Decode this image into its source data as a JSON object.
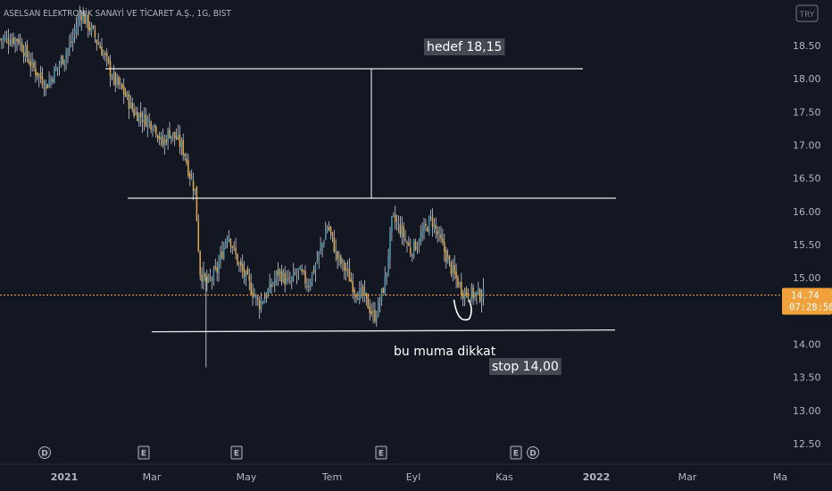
{
  "header": {
    "symbol_title": "ASELSAN ELEKTRONİK SANAYİ VE TİCARET A.Ş., 1G, BIST",
    "currency_badge": "TRY"
  },
  "price_tag": {
    "price": "14.74",
    "countdown": "07:28:50"
  },
  "colors": {
    "background": "#131722",
    "up": "#4f8fa9",
    "down": "#d8a34a",
    "wick": "#c8cbd2",
    "drawing": "#ffffff",
    "price_line": "#f0a13c",
    "axis_text": "#b2b5be",
    "label_bg": "#4a4e58"
  },
  "annotations": {
    "target": "hedef 18,15",
    "watch": "bu muma dikkat",
    "stop": "stop 14,00"
  },
  "event_markers": [
    "D",
    "E",
    "E",
    "E",
    "E",
    "D"
  ],
  "chart_data": {
    "type": "candlestick",
    "title": "ASELSAN ELEKTRONİK SANAYİ VE TİCARET A.Ş., 1G, BIST",
    "x_ticks": [
      "2021",
      "Mar",
      "May",
      "Tem",
      "Eyl",
      "Kas",
      "2022",
      "Mar",
      "Ma"
    ],
    "y_ticks": [
      "18.50",
      "18.00",
      "17.50",
      "17.00",
      "16.50",
      "16.00",
      "15.50",
      "15.00",
      "14.50",
      "14.00",
      "13.50",
      "13.00",
      "12.50"
    ],
    "ylim": [
      12.2,
      19.3
    ],
    "last_price": 14.74,
    "levels": {
      "target": 18.15,
      "resistance": 16.2,
      "support": 14.2
    },
    "close_path": [
      [
        "2020-12-01",
        18.6
      ],
      [
        "2020-12-10",
        18.2
      ],
      [
        "2020-12-20",
        17.9
      ],
      [
        "2020-12-28",
        18.2
      ],
      [
        "2021-01-05",
        18.5
      ],
      [
        "2021-01-12",
        19.0
      ],
      [
        "2021-01-20",
        18.7
      ],
      [
        "2021-01-27",
        18.4
      ],
      [
        "2021-02-03",
        18.0
      ],
      [
        "2021-02-10",
        17.8
      ],
      [
        "2021-02-17",
        17.5
      ],
      [
        "2021-02-24",
        17.4
      ],
      [
        "2021-03-03",
        17.3
      ],
      [
        "2021-03-08",
        17.0
      ],
      [
        "2021-03-12",
        17.2
      ],
      [
        "2021-03-17",
        17.1
      ],
      [
        "2021-03-22",
        16.9
      ],
      [
        "2021-03-25",
        16.6
      ],
      [
        "2021-03-29",
        16.3
      ],
      [
        "2021-04-01",
        15.1
      ],
      [
        "2021-04-06",
        14.9
      ],
      [
        "2021-04-12",
        15.1
      ],
      [
        "2021-04-19",
        15.7
      ],
      [
        "2021-04-26",
        15.2
      ],
      [
        "2021-05-03",
        14.9
      ],
      [
        "2021-05-10",
        14.6
      ],
      [
        "2021-05-17",
        14.8
      ],
      [
        "2021-05-24",
        15.1
      ],
      [
        "2021-05-31",
        14.9
      ],
      [
        "2021-06-07",
        15.1
      ],
      [
        "2021-06-14",
        14.9
      ],
      [
        "2021-06-21",
        15.3
      ],
      [
        "2021-06-28",
        15.8
      ],
      [
        "2021-07-05",
        15.3
      ],
      [
        "2021-07-12",
        15.1
      ],
      [
        "2021-07-19",
        14.8
      ],
      [
        "2021-07-26",
        14.7
      ],
      [
        "2021-08-02",
        14.4
      ],
      [
        "2021-08-06",
        14.6
      ],
      [
        "2021-08-11",
        15.0
      ],
      [
        "2021-08-16",
        15.9
      ],
      [
        "2021-08-23",
        15.7
      ],
      [
        "2021-08-30",
        15.4
      ],
      [
        "2021-09-06",
        15.6
      ],
      [
        "2021-09-13",
        15.9
      ],
      [
        "2021-09-20",
        15.5
      ],
      [
        "2021-09-27",
        15.1
      ],
      [
        "2021-10-04",
        14.8
      ],
      [
        "2021-10-11",
        14.75
      ],
      [
        "2021-10-18",
        14.74
      ]
    ]
  }
}
